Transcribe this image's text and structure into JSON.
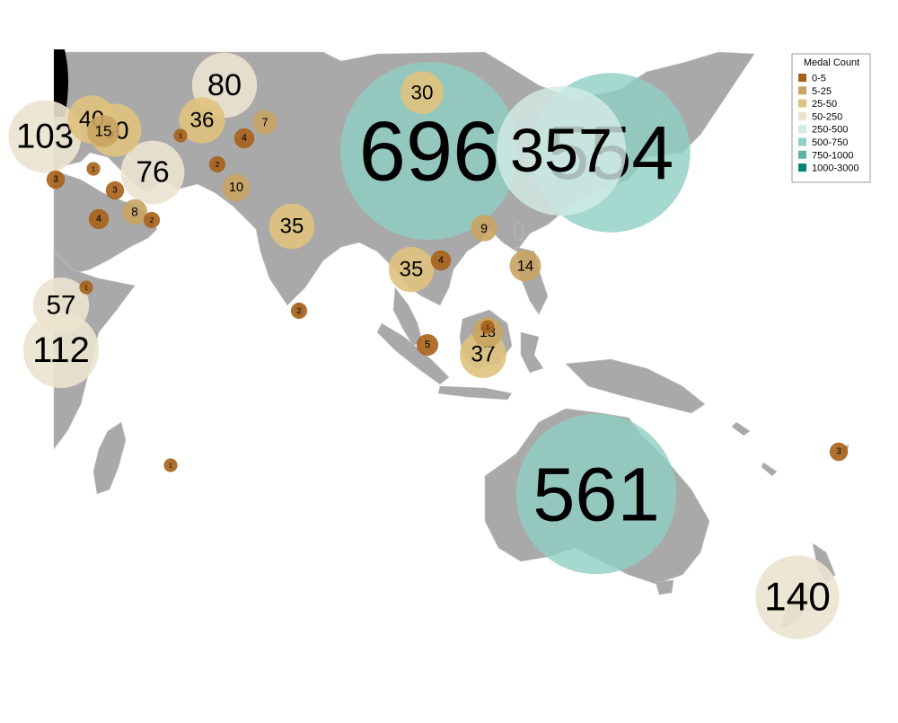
{
  "colors": {
    "land": "#a9a9a9",
    "background": "#ffffff",
    "border": "#c8c8c8"
  },
  "legend": {
    "title": "Medal Count",
    "items": [
      {
        "label": "0-5",
        "color": "#a6611a"
      },
      {
        "label": "5-25",
        "color": "#c9a463"
      },
      {
        "label": "25-50",
        "color": "#dfc27d"
      },
      {
        "label": "50-250",
        "color": "#ece3cf"
      },
      {
        "label": "250-500",
        "color": "#d3ebe6"
      },
      {
        "label": "500-750",
        "color": "#8fd0c4"
      },
      {
        "label": "750-1000",
        "color": "#5fb3a3"
      },
      {
        "label": "1000-3000",
        "color": "#018571"
      }
    ]
  },
  "map_data": {
    "type": "proportional-symbol-map",
    "region": "Asia-Pacific",
    "legend_placement": "top-right",
    "markers": [
      {
        "label": "696",
        "value": 696,
        "bin": "500-750"
      },
      {
        "label": "554",
        "value": 554,
        "bin": "500-750"
      },
      {
        "label": "357",
        "value": 357,
        "bin": "250-500"
      },
      {
        "label": "561",
        "value": 561,
        "bin": "500-750"
      },
      {
        "label": "140",
        "value": 140,
        "bin": "50-250"
      },
      {
        "label": "80",
        "value": 80,
        "bin": "50-250"
      },
      {
        "label": "76",
        "value": 76,
        "bin": "50-250"
      },
      {
        "label": "57",
        "value": 57,
        "bin": "50-250"
      },
      {
        "label": "112",
        "value": 112,
        "bin": "50-250"
      },
      {
        "label": "103",
        "value": 103,
        "bin": "50-250"
      },
      {
        "label": "50",
        "value": 50,
        "bin": "25-50"
      },
      {
        "label": "40",
        "value": 40,
        "bin": "25-50"
      },
      {
        "label": "36",
        "value": 36,
        "bin": "25-50"
      },
      {
        "label": "35",
        "value": 35,
        "bin": "25-50"
      },
      {
        "label": "35",
        "value": 35,
        "bin": "25-50"
      },
      {
        "label": "37",
        "value": 37,
        "bin": "25-50"
      },
      {
        "label": "30",
        "value": 30,
        "bin": "25-50"
      },
      {
        "label": "15",
        "value": 15,
        "bin": "5-25"
      },
      {
        "label": "14",
        "value": 14,
        "bin": "5-25"
      },
      {
        "label": "13",
        "value": 13,
        "bin": "5-25"
      },
      {
        "label": "10",
        "value": 10,
        "bin": "5-25"
      },
      {
        "label": "9",
        "value": 9,
        "bin": "5-25"
      },
      {
        "label": "8",
        "value": 8,
        "bin": "5-25"
      },
      {
        "label": "7",
        "value": 7,
        "bin": "5-25"
      },
      {
        "label": "5",
        "value": 5,
        "bin": "0-5"
      },
      {
        "label": "4",
        "value": 4,
        "bin": "0-5"
      },
      {
        "label": "4",
        "value": 4,
        "bin": "0-5"
      },
      {
        "label": "4",
        "value": 4,
        "bin": "0-5"
      },
      {
        "label": "3",
        "value": 3,
        "bin": "0-5"
      },
      {
        "label": "3",
        "value": 3,
        "bin": "0-5"
      },
      {
        "label": "3",
        "value": 3,
        "bin": "0-5"
      },
      {
        "label": "2",
        "value": 2,
        "bin": "0-5"
      },
      {
        "label": "2",
        "value": 2,
        "bin": "0-5"
      },
      {
        "label": "2",
        "value": 2,
        "bin": "0-5"
      },
      {
        "label": "1",
        "value": 1,
        "bin": "0-5"
      },
      {
        "label": "1",
        "value": 1,
        "bin": "0-5"
      },
      {
        "label": "1",
        "value": 1,
        "bin": "0-5"
      },
      {
        "label": "1",
        "value": 1,
        "bin": "0-5"
      },
      {
        "label": "1",
        "value": 1,
        "bin": "0-5"
      }
    ]
  }
}
